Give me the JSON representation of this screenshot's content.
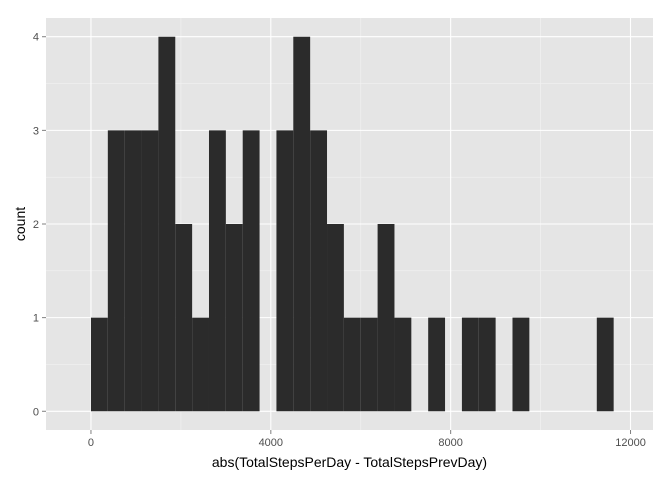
{
  "chart_data": {
    "type": "bar",
    "xlabel": "abs(TotalStepsPerDay - TotalStepsPrevDay)",
    "ylabel": "count",
    "xlim": [
      -1000,
      12500
    ],
    "ylim": [
      -0.2,
      4.2
    ],
    "x_ticks": [
      0,
      4000,
      8000,
      12000
    ],
    "x_tick_labels": [
      "0",
      "4000",
      "8000",
      "12000"
    ],
    "y_ticks": [
      0,
      1,
      2,
      3,
      4
    ],
    "y_tick_labels": [
      "0",
      "1",
      "2",
      "3",
      "4"
    ],
    "grid": true,
    "bin_width": 375,
    "bins": [
      {
        "x0": 0,
        "x1": 375,
        "count": 1
      },
      {
        "x0": 375,
        "x1": 750,
        "count": 3
      },
      {
        "x0": 750,
        "x1": 1125,
        "count": 3
      },
      {
        "x0": 1125,
        "x1": 1500,
        "count": 3
      },
      {
        "x0": 1500,
        "x1": 1875,
        "count": 4
      },
      {
        "x0": 1875,
        "x1": 2250,
        "count": 2
      },
      {
        "x0": 2250,
        "x1": 2625,
        "count": 1
      },
      {
        "x0": 2625,
        "x1": 3000,
        "count": 3
      },
      {
        "x0": 3000,
        "x1": 3375,
        "count": 2
      },
      {
        "x0": 3375,
        "x1": 3750,
        "count": 3
      },
      {
        "x0": 3750,
        "x1": 4125,
        "count": 0
      },
      {
        "x0": 4125,
        "x1": 4500,
        "count": 3
      },
      {
        "x0": 4500,
        "x1": 4875,
        "count": 4
      },
      {
        "x0": 4875,
        "x1": 5250,
        "count": 3
      },
      {
        "x0": 5250,
        "x1": 5625,
        "count": 2
      },
      {
        "x0": 5625,
        "x1": 6000,
        "count": 1
      },
      {
        "x0": 6000,
        "x1": 6375,
        "count": 1
      },
      {
        "x0": 6375,
        "x1": 6750,
        "count": 2
      },
      {
        "x0": 6750,
        "x1": 7125,
        "count": 1
      },
      {
        "x0": 7125,
        "x1": 7500,
        "count": 0
      },
      {
        "x0": 7500,
        "x1": 7875,
        "count": 1
      },
      {
        "x0": 7875,
        "x1": 8250,
        "count": 0
      },
      {
        "x0": 8250,
        "x1": 8625,
        "count": 1
      },
      {
        "x0": 8625,
        "x1": 9000,
        "count": 1
      },
      {
        "x0": 9000,
        "x1": 9375,
        "count": 0
      },
      {
        "x0": 9375,
        "x1": 9750,
        "count": 1
      },
      {
        "x0": 9750,
        "x1": 10125,
        "count": 0
      },
      {
        "x0": 10125,
        "x1": 10500,
        "count": 0
      },
      {
        "x0": 10500,
        "x1": 10875,
        "count": 0
      },
      {
        "x0": 10875,
        "x1": 11250,
        "count": 0
      },
      {
        "x0": 11250,
        "x1": 11625,
        "count": 1
      }
    ],
    "colors": {
      "panel": "#e5e5e5",
      "grid_major": "#ffffff",
      "grid_minor": "#f2f2f2",
      "bar": "#2b2b2b"
    }
  }
}
